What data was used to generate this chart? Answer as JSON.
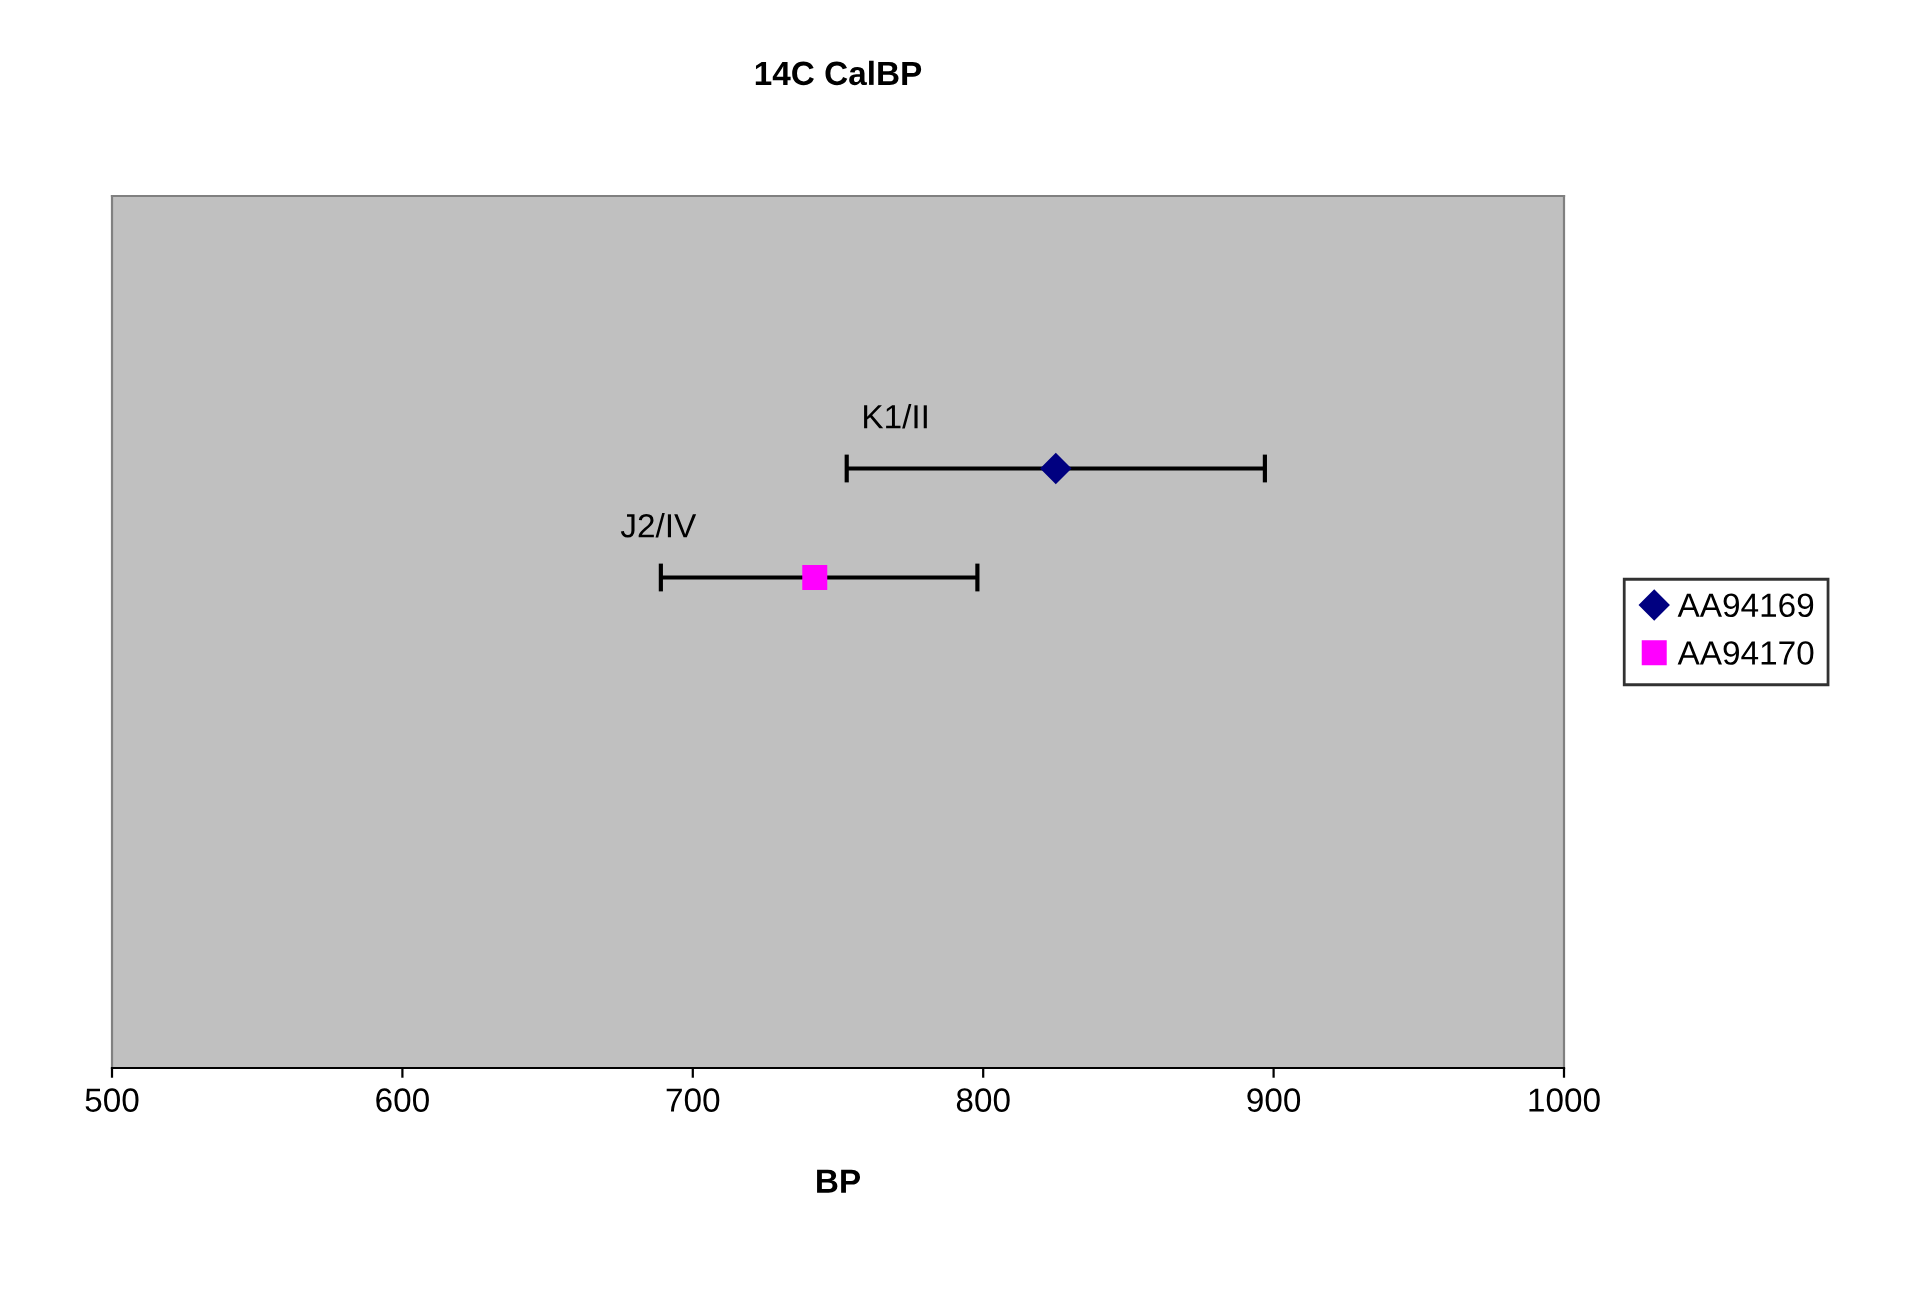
{
  "chart_data": {
    "type": "scatter",
    "orientation": "horizontal",
    "title": "14C CalBP",
    "xlabel": "BP",
    "categories": [
      null,
      null,
      null,
      null,
      null,
      null,
      null,
      null
    ],
    "xlim": [
      500,
      1000
    ],
    "xticks": [
      500,
      600,
      700,
      800,
      900,
      1000
    ],
    "grid": false,
    "legend": "right",
    "series": [
      {
        "name": "AA94169",
        "color": "#000080",
        "marker": "diamond",
        "values": [
          null,
          null,
          825,
          null,
          null,
          null,
          null,
          null
        ],
        "errors": [
          null,
          null,
          [
            753,
            897
          ],
          null,
          null,
          null,
          null,
          null
        ]
      },
      {
        "name": "AA94170",
        "color": "#ff00ff",
        "marker": "square",
        "values": [
          null,
          null,
          null,
          742,
          null,
          null,
          null,
          null
        ],
        "errors": [
          null,
          null,
          null,
          [
            689,
            798
          ],
          null,
          null,
          null,
          null
        ]
      }
    ],
    "annotations": [
      "K1/II",
      "J2/IV"
    ]
  }
}
